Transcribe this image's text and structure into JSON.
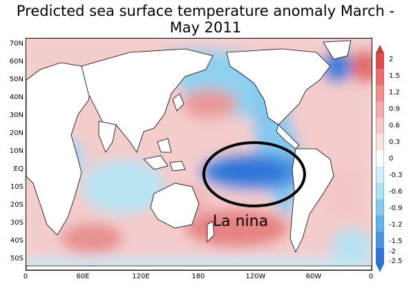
{
  "title": "Predicted sea surface temperature anomaly March - May 2011",
  "annotation": "La nina",
  "y_axis_labels": [
    "70N",
    "60N",
    "50N",
    "40N",
    "30N",
    "20N",
    "10N",
    "EQ",
    "10S",
    "20S",
    "30S",
    "40S",
    "50S"
  ],
  "x_axis_labels": [
    "0",
    "60E",
    "120E",
    "180",
    "120W",
    "60W",
    "0"
  ],
  "colorbar_labels": [
    "2",
    "1.5",
    "1.2",
    "0.9",
    "0.6",
    "0.3",
    "0",
    "-0.3",
    "-0.6",
    "-0.9",
    "-1.2",
    "-1.5",
    "-2",
    "-2.5"
  ],
  "colors": {
    "warm_strong": "#d63b3b",
    "warm_mid": "#ea8c8c",
    "warm_light": "#f6caca",
    "neutral": "#ffffff",
    "cool_light": "#a9e2f2",
    "cool_mid": "#63b3e8",
    "cool_strong": "#2f74d8",
    "land": "#ffffff",
    "coastline": "#000000"
  }
}
